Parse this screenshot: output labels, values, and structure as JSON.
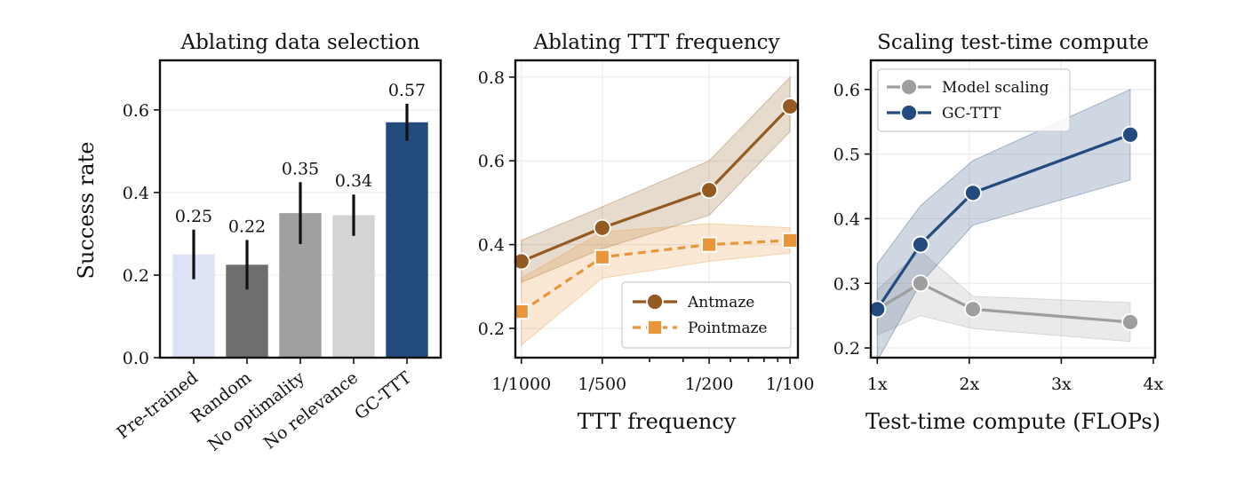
{
  "chart_data": [
    {
      "type": "bar",
      "title": "Ablating data selection",
      "ylabel": "Success rate",
      "xlabel": "",
      "ylim": [
        0,
        0.72
      ],
      "yticks": [
        0.0,
        0.2,
        0.4,
        0.6
      ],
      "ytick_labels": [
        "0.0",
        "0.2",
        "0.4",
        "0.6"
      ],
      "grid": true,
      "categories": [
        "Pre-trained",
        "Random",
        "No optimality",
        "No relevance",
        "GC-TTT"
      ],
      "values": [
        0.25,
        0.225,
        0.35,
        0.345,
        0.57
      ],
      "value_labels": [
        "0.25",
        "0.22",
        "0.35",
        "0.34",
        "0.57"
      ],
      "error_low": [
        0.19,
        0.165,
        0.275,
        0.295,
        0.525
      ],
      "error_high": [
        0.31,
        0.285,
        0.425,
        0.395,
        0.615
      ],
      "colors": [
        "#dde2f4",
        "#6e6e6e",
        "#a0a0a0",
        "#d4d4d4",
        "#234b7e"
      ]
    },
    {
      "type": "line",
      "title": "Ablating TTT frequency",
      "xlabel": "TTT frequency",
      "ylabel": "",
      "xscale": "log",
      "xlim": [
        0.00095,
        0.0107
      ],
      "ylim": [
        0.13,
        0.84
      ],
      "x_tick_values": [
        0.001,
        0.002,
        0.005,
        0.01
      ],
      "xtick_labels": [
        "1/1000",
        "1/500",
        "1/200",
        "1/100"
      ],
      "yticks": [
        0.2,
        0.4,
        0.6,
        0.8
      ],
      "ytick_labels": [
        "0.2",
        "0.4",
        "0.6",
        "0.8"
      ],
      "grid": true,
      "legend_position": "lower-right",
      "series": [
        {
          "name": "Antmaze",
          "color": "#935a21",
          "marker": "circle",
          "linestyle": "solid",
          "x": [
            0.001,
            0.002,
            0.005,
            0.01
          ],
          "values": [
            0.36,
            0.44,
            0.53,
            0.73
          ],
          "band_low": [
            0.31,
            0.39,
            0.47,
            0.67
          ],
          "band_high": [
            0.41,
            0.49,
            0.6,
            0.8
          ]
        },
        {
          "name": "Pointmaze",
          "color": "#e9953a",
          "marker": "square",
          "linestyle": "dashed",
          "x": [
            0.001,
            0.002,
            0.005,
            0.01
          ],
          "values": [
            0.24,
            0.37,
            0.4,
            0.41
          ],
          "band_low": [
            0.16,
            0.32,
            0.36,
            0.38
          ],
          "band_high": [
            0.32,
            0.43,
            0.45,
            0.44
          ]
        }
      ]
    },
    {
      "type": "line",
      "title": "Scaling test-time compute",
      "xlabel": "Test-time compute (FLOPs)",
      "ylabel": "",
      "xlim": [
        0.93,
        4.02
      ],
      "ylim": [
        0.185,
        0.645
      ],
      "xticks": [
        1,
        2,
        3,
        4
      ],
      "xtick_labels": [
        "1x",
        "2x",
        "3x",
        "4x"
      ],
      "yticks": [
        0.2,
        0.3,
        0.4,
        0.5,
        0.6
      ],
      "ytick_labels": [
        "0.2",
        "0.3",
        "0.4",
        "0.5",
        "0.6"
      ],
      "grid": true,
      "legend_position": "top-left",
      "series": [
        {
          "name": "Model scaling",
          "color": "#9e9e9e",
          "marker": "circle",
          "linestyle": "solid",
          "x": [
            1.0,
            1.47,
            2.04,
            3.75
          ],
          "values": [
            0.26,
            0.3,
            0.26,
            0.24
          ],
          "band_low": [
            0.22,
            0.25,
            0.23,
            0.21
          ],
          "band_high": [
            0.29,
            0.35,
            0.28,
            0.27
          ]
        },
        {
          "name": "GC-TTT",
          "color": "#234b7e",
          "marker": "circle",
          "linestyle": "solid",
          "x": [
            1.0,
            1.47,
            2.04,
            3.75
          ],
          "values": [
            0.26,
            0.36,
            0.44,
            0.53
          ],
          "band_low": [
            0.18,
            0.3,
            0.39,
            0.46
          ],
          "band_high": [
            0.33,
            0.42,
            0.49,
            0.6
          ]
        }
      ]
    }
  ]
}
